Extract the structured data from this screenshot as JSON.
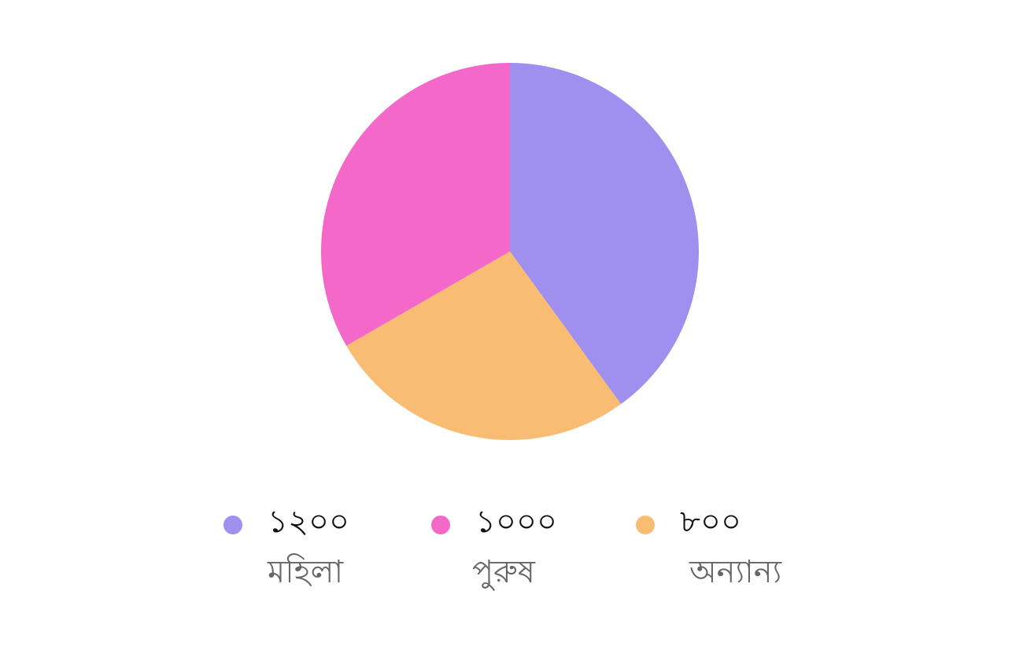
{
  "chart_data": {
    "type": "pie",
    "slices": [
      {
        "value": 1200,
        "value_label": "১২০০",
        "label": "মহিলা",
        "color": "#9f8fee"
      },
      {
        "value": 1000,
        "value_label": "১০০০",
        "label": "পুরুষ",
        "color": "#f368c8"
      },
      {
        "value": 800,
        "value_label": "৮০০",
        "label": "অন্যান্য",
        "color": "#f8bd72"
      }
    ],
    "drawn_order": [
      0,
      2,
      1
    ],
    "start_angle_deg": 0,
    "direction": "clockwise",
    "legend_position": "bottom"
  }
}
